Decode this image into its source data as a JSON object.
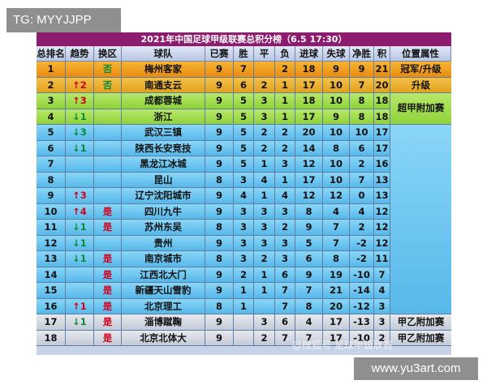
{
  "watermarks": {
    "top_left": "TG: MYYJJPP",
    "bottom_right": "www.yu3art.com",
    "middle": "@搜狐号 足球甲级联赛"
  },
  "table": {
    "title": "2021年中国足球甲级联赛总积分榜（6.5 17:30）",
    "headers": [
      "总排名",
      "趋势",
      "换区",
      "球队",
      "已赛",
      "胜",
      "平",
      "负",
      "进球",
      "失球",
      "净胜",
      "积分",
      "位置属性"
    ],
    "rows": [
      {
        "rank": "1",
        "trend": "",
        "trend_dir": "",
        "zone_change": "否",
        "zone_color": "green",
        "team": "梅州客家",
        "played": "9",
        "w": "7",
        "d": "",
        "l": "2",
        "gf": "18",
        "ga": "9",
        "gd": "9",
        "pts": "21",
        "style": "champ"
      },
      {
        "rank": "2",
        "trend": "↑2",
        "trend_dir": "up",
        "zone_change": "否",
        "zone_color": "green",
        "team": "南通支云",
        "played": "9",
        "w": "6",
        "d": "2",
        "l": "1",
        "gf": "17",
        "ga": "10",
        "gd": "7",
        "pts": "20",
        "style": "promo"
      },
      {
        "rank": "3",
        "trend": "↑3",
        "trend_dir": "up",
        "zone_change": "",
        "zone_color": "",
        "team": "成都蓉城",
        "played": "9",
        "w": "5",
        "d": "3",
        "l": "1",
        "gf": "18",
        "ga": "10",
        "gd": "8",
        "pts": "18",
        "style": "green"
      },
      {
        "rank": "4",
        "trend": "↓1",
        "trend_dir": "down",
        "zone_change": "",
        "zone_color": "",
        "team": "浙江",
        "played": "9",
        "w": "5",
        "d": "3",
        "l": "1",
        "gf": "17",
        "ga": "9",
        "gd": "8",
        "pts": "18",
        "style": "green"
      },
      {
        "rank": "5",
        "trend": "↓3",
        "trend_dir": "down",
        "zone_change": "",
        "zone_color": "",
        "team": "武汉三镇",
        "played": "9",
        "w": "5",
        "d": "2",
        "l": "2",
        "gf": "20",
        "ga": "10",
        "gd": "10",
        "pts": "17",
        "style": "blue"
      },
      {
        "rank": "6",
        "trend": "↓1",
        "trend_dir": "down",
        "zone_change": "",
        "zone_color": "",
        "team": "陕西长安竞技",
        "played": "9",
        "w": "5",
        "d": "2",
        "l": "2",
        "gf": "14",
        "ga": "8",
        "gd": "6",
        "pts": "17",
        "style": "blue"
      },
      {
        "rank": "7",
        "trend": "",
        "trend_dir": "",
        "zone_change": "",
        "zone_color": "",
        "team": "黑龙江冰城",
        "played": "9",
        "w": "5",
        "d": "1",
        "l": "3",
        "gf": "12",
        "ga": "10",
        "gd": "2",
        "pts": "16",
        "style": "blue"
      },
      {
        "rank": "8",
        "trend": "",
        "trend_dir": "",
        "zone_change": "",
        "zone_color": "",
        "team": "昆山",
        "played": "8",
        "w": "3",
        "d": "4",
        "l": "1",
        "gf": "17",
        "ga": "10",
        "gd": "7",
        "pts": "13",
        "style": "blue"
      },
      {
        "rank": "9",
        "trend": "↑3",
        "trend_dir": "up",
        "zone_change": "",
        "zone_color": "",
        "team": "辽宁沈阳城市",
        "played": "9",
        "w": "4",
        "d": "1",
        "l": "4",
        "gf": "12",
        "ga": "12",
        "gd": "0",
        "pts": "13",
        "style": "blue"
      },
      {
        "rank": "10",
        "trend": "↑4",
        "trend_dir": "up",
        "zone_change": "是",
        "zone_color": "red",
        "team": "四川九牛",
        "played": "9",
        "w": "3",
        "d": "3",
        "l": "3",
        "gf": "8",
        "ga": "4",
        "gd": "4",
        "pts": "12",
        "style": "blue"
      },
      {
        "rank": "11",
        "trend": "↓1",
        "trend_dir": "down",
        "zone_change": "是",
        "zone_color": "red",
        "team": "苏州东吴",
        "played": "8",
        "w": "3",
        "d": "3",
        "l": "2",
        "gf": "9",
        "ga": "7",
        "gd": "2",
        "pts": "12",
        "style": "blue"
      },
      {
        "rank": "12",
        "trend": "↓1",
        "trend_dir": "down",
        "zone_change": "",
        "zone_color": "",
        "team": "贵州",
        "played": "9",
        "w": "3",
        "d": "3",
        "l": "3",
        "gf": "5",
        "ga": "7",
        "gd": "-2",
        "pts": "12",
        "style": "blue"
      },
      {
        "rank": "13",
        "trend": "↓1",
        "trend_dir": "down",
        "zone_change": "是",
        "zone_color": "red",
        "team": "南京城市",
        "played": "8",
        "w": "3",
        "d": "2",
        "l": "3",
        "gf": "6",
        "ga": "8",
        "gd": "-2",
        "pts": "11",
        "style": "blue"
      },
      {
        "rank": "14",
        "trend": "",
        "trend_dir": "",
        "zone_change": "是",
        "zone_color": "red",
        "team": "江西北大门",
        "played": "9",
        "w": "2",
        "d": "1",
        "l": "6",
        "gf": "9",
        "ga": "19",
        "gd": "-10",
        "pts": "7",
        "style": "blue"
      },
      {
        "rank": "15",
        "trend": "",
        "trend_dir": "",
        "zone_change": "是",
        "zone_color": "red",
        "team": "新疆天山雪豹",
        "played": "9",
        "w": "1",
        "d": "1",
        "l": "7",
        "gf": "7",
        "ga": "21",
        "gd": "-14",
        "pts": "4",
        "style": "blue"
      },
      {
        "rank": "16",
        "trend": "↑1",
        "trend_dir": "up",
        "zone_change": "是",
        "zone_color": "red",
        "team": "北京理工",
        "played": "8",
        "w": "1",
        "d": "",
        "l": "7",
        "gf": "8",
        "ga": "20",
        "gd": "-12",
        "pts": "3",
        "style": "blue"
      },
      {
        "rank": "17",
        "trend": "↓1",
        "trend_dir": "down",
        "zone_change": "是",
        "zone_color": "red",
        "team": "淄博蹴鞠",
        "played": "9",
        "w": "",
        "d": "3",
        "l": "6",
        "gf": "4",
        "ga": "17",
        "gd": "-13",
        "pts": "3",
        "style": "gray"
      },
      {
        "rank": "18",
        "trend": "",
        "trend_dir": "",
        "zone_change": "是",
        "zone_color": "red",
        "team": "北京北体大",
        "played": "9",
        "w": "",
        "d": "2",
        "l": "7",
        "gf": "7",
        "ga": "17",
        "gd": "-10",
        "pts": "2",
        "style": "gray"
      }
    ],
    "zones": [
      {
        "label": "冠军/升级",
        "style": "champ"
      },
      {
        "label": "升级",
        "style": "promo"
      },
      {
        "label": "超甲附加赛",
        "style": "green"
      },
      {
        "label": "",
        "style": "blue"
      },
      {
        "label": "甲乙附加赛",
        "style": "gray"
      },
      {
        "label": "甲乙附加赛",
        "style": "gray"
      }
    ],
    "colors": {
      "title_bg": "#8d1c6f",
      "champ": "#f0a12a",
      "promo": "#e8b030",
      "green": "#a4de50",
      "blue": "#6cc6f1",
      "gray": "#d3d8e1",
      "up": "#d3001d",
      "down": "#0a8a3a"
    }
  }
}
